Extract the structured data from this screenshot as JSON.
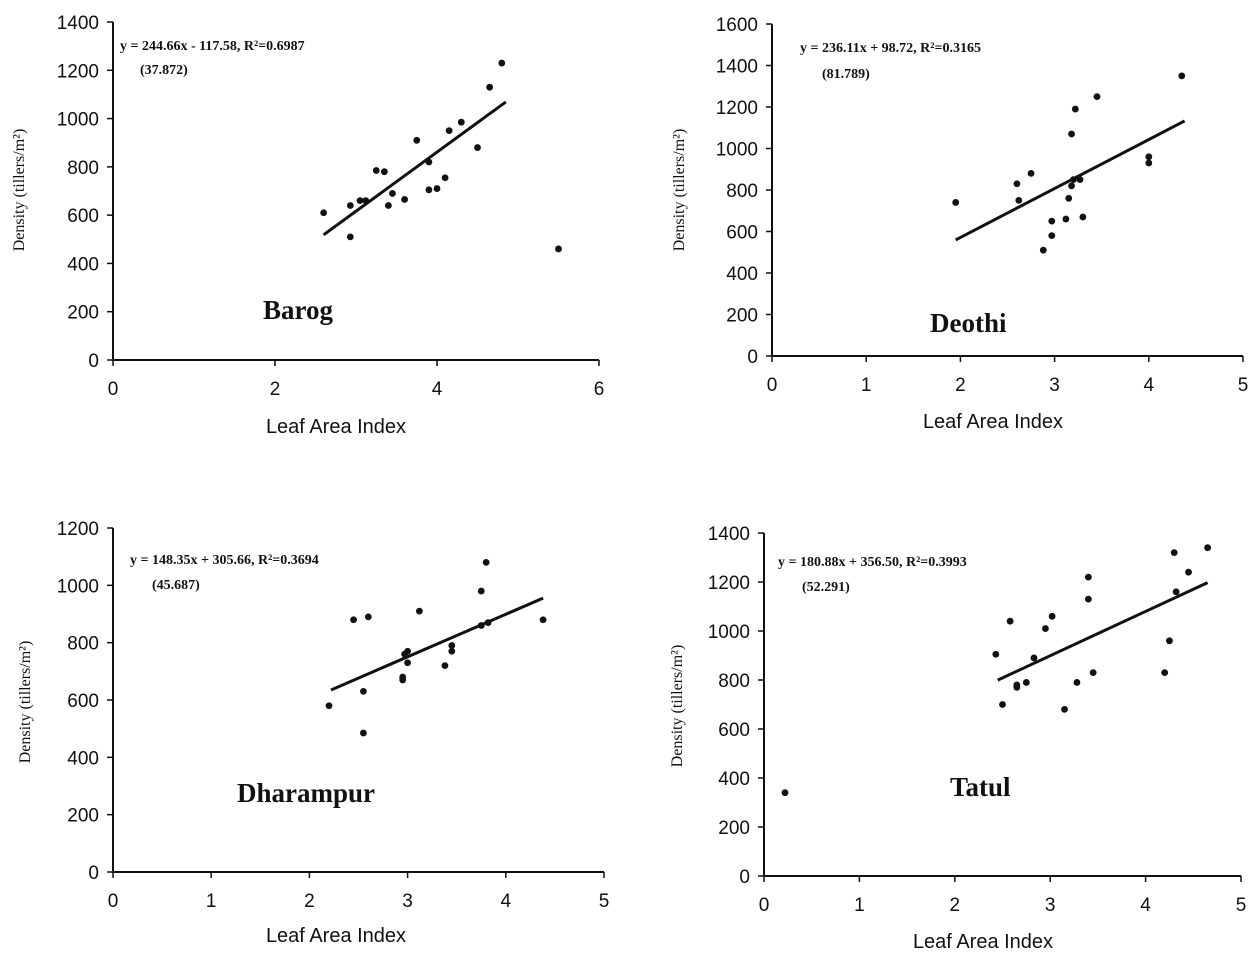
{
  "chart_data": [
    {
      "type": "scatter",
      "site": "Barog",
      "xlabel": "Leaf Area Index",
      "ylabel": "Density (tillers/m²)",
      "xlim": [
        0,
        6
      ],
      "ylim": [
        0,
        1400
      ],
      "xticks": [
        0,
        2,
        4,
        6
      ],
      "yticks": [
        0,
        200,
        400,
        600,
        800,
        1000,
        1200,
        1400
      ],
      "equation": "y = 244.66x - 117.58, R²=0.6987",
      "equation_note": "(37.872)",
      "fit": {
        "slope": 244.66,
        "intercept": -117.58,
        "x_range": [
          2.6,
          4.85
        ]
      },
      "points": [
        [
          2.6,
          610
        ],
        [
          2.93,
          510
        ],
        [
          2.93,
          640
        ],
        [
          3.05,
          660
        ],
        [
          3.12,
          660
        ],
        [
          3.25,
          785
        ],
        [
          3.35,
          780
        ],
        [
          3.4,
          640
        ],
        [
          3.45,
          690
        ],
        [
          3.6,
          665
        ],
        [
          3.75,
          910
        ],
        [
          3.9,
          820
        ],
        [
          3.9,
          705
        ],
        [
          4.0,
          710
        ],
        [
          4.1,
          755
        ],
        [
          4.15,
          950
        ],
        [
          4.3,
          985
        ],
        [
          4.5,
          880
        ],
        [
          4.65,
          1130
        ],
        [
          4.8,
          1230
        ],
        [
          5.5,
          460
        ]
      ]
    },
    {
      "type": "scatter",
      "site": "Deothi",
      "xlabel": "Leaf Area Index",
      "ylabel": "Density (tillers/m²)",
      "xlim": [
        0,
        5
      ],
      "ylim": [
        0,
        1600
      ],
      "xticks": [
        0,
        1,
        2,
        3,
        4,
        5
      ],
      "yticks": [
        0,
        200,
        400,
        600,
        800,
        1000,
        1200,
        1400,
        1600
      ],
      "equation": "y = 236.11x + 98.72, R²=0.3165",
      "equation_note": "(81.789)",
      "fit": {
        "slope": 236.11,
        "intercept": 98.72,
        "x_range": [
          1.95,
          4.38
        ]
      },
      "points": [
        [
          1.95,
          740
        ],
        [
          2.6,
          830
        ],
        [
          2.62,
          750
        ],
        [
          2.75,
          880
        ],
        [
          2.88,
          510
        ],
        [
          2.97,
          650
        ],
        [
          2.97,
          580
        ],
        [
          3.12,
          660
        ],
        [
          3.15,
          760
        ],
        [
          3.18,
          1070
        ],
        [
          3.18,
          820
        ],
        [
          3.2,
          850
        ],
        [
          3.22,
          1190
        ],
        [
          3.27,
          850
        ],
        [
          3.3,
          670
        ],
        [
          3.45,
          1250
        ],
        [
          4.0,
          960
        ],
        [
          4.0,
          930
        ],
        [
          4.35,
          1350
        ]
      ]
    },
    {
      "type": "scatter",
      "site": "Dharampur",
      "xlabel": "Leaf Area Index",
      "ylabel": "Density (tillers/m²)",
      "xlim": [
        0,
        5
      ],
      "ylim": [
        0,
        1200
      ],
      "xticks": [
        0,
        1,
        2,
        3,
        4,
        5
      ],
      "yticks": [
        0,
        200,
        400,
        600,
        800,
        1000,
        1200
      ],
      "equation": "y = 148.35x + 305.66, R²=0.3694",
      "equation_note": "(45.687)",
      "fit": {
        "slope": 148.35,
        "intercept": 305.66,
        "x_range": [
          2.22,
          4.38
        ]
      },
      "points": [
        [
          2.2,
          580
        ],
        [
          2.45,
          880
        ],
        [
          2.55,
          630
        ],
        [
          2.55,
          485
        ],
        [
          2.6,
          890
        ],
        [
          2.95,
          670
        ],
        [
          2.95,
          680
        ],
        [
          2.97,
          760
        ],
        [
          3.0,
          730
        ],
        [
          3.0,
          770
        ],
        [
          3.12,
          910
        ],
        [
          3.38,
          720
        ],
        [
          3.45,
          770
        ],
        [
          3.45,
          790
        ],
        [
          3.75,
          980
        ],
        [
          3.75,
          860
        ],
        [
          3.8,
          1080
        ],
        [
          3.82,
          870
        ],
        [
          4.38,
          880
        ]
      ]
    },
    {
      "type": "scatter",
      "site": "Tatul",
      "xlabel": "Leaf Area Index",
      "ylabel": "Density (tillers/m²)",
      "xlim": [
        0,
        5
      ],
      "ylim": [
        0,
        1400
      ],
      "xticks": [
        0,
        1,
        2,
        3,
        4,
        5
      ],
      "yticks": [
        0,
        200,
        400,
        600,
        800,
        1000,
        1200,
        1400
      ],
      "equation": "y = 180.88x + 356.50, R²=0.3993",
      "equation_note": "(52.291)",
      "fit": {
        "slope": 180.88,
        "intercept": 356.5,
        "x_range": [
          2.45,
          4.65
        ]
      },
      "points": [
        [
          0.22,
          340
        ],
        [
          2.43,
          905
        ],
        [
          2.5,
          700
        ],
        [
          2.58,
          1040
        ],
        [
          2.65,
          780
        ],
        [
          2.65,
          770
        ],
        [
          2.75,
          790
        ],
        [
          2.83,
          890
        ],
        [
          2.95,
          1010
        ],
        [
          3.02,
          1060
        ],
        [
          3.15,
          680
        ],
        [
          3.28,
          790
        ],
        [
          3.4,
          1220
        ],
        [
          3.4,
          1130
        ],
        [
          3.45,
          830
        ],
        [
          4.2,
          830
        ],
        [
          4.25,
          960
        ],
        [
          4.3,
          1320
        ],
        [
          4.32,
          1160
        ],
        [
          4.45,
          1240
        ],
        [
          4.65,
          1340
        ]
      ]
    }
  ]
}
